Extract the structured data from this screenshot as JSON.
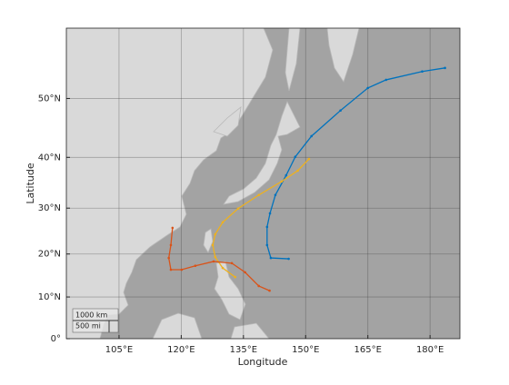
{
  "chart_data": {
    "type": "geoline",
    "projection": "mercator",
    "xlabel": "Longitude",
    "ylabel": "Latitude",
    "xlim": [
      92.3,
      187.2
    ],
    "ylim": [
      0,
      59.7
    ],
    "xticks": [
      {
        "value": 105,
        "label": "105°E"
      },
      {
        "value": 120,
        "label": "120°E"
      },
      {
        "value": 135,
        "label": "135°E"
      },
      {
        "value": 150,
        "label": "150°E"
      },
      {
        "value": 165,
        "label": "165°E"
      },
      {
        "value": 180,
        "label": "180°E"
      }
    ],
    "yticks": [
      {
        "value": 0,
        "label": "0°"
      },
      {
        "value": 10,
        "label": "10°N"
      },
      {
        "value": 20,
        "label": "20°N"
      },
      {
        "value": 30,
        "label": "30°N"
      },
      {
        "value": 40,
        "label": "40°N"
      },
      {
        "value": 50,
        "label": "50°N"
      }
    ],
    "grid": true,
    "scale_bar": [
      "1000 km",
      "500 mi"
    ],
    "series": [
      {
        "color": "#0072BD",
        "x": [
          145.9,
          141.6,
          140.7,
          140.7,
          141.4,
          142.7,
          145.3,
          147.5,
          151.4,
          158.4,
          165.0,
          169.4,
          178.1,
          183.6
        ],
        "values": [
          18.9,
          19.1,
          22.0,
          26.0,
          28.9,
          32.7,
          36.6,
          40.1,
          43.8,
          48.1,
          51.6,
          52.8,
          54.0,
          54.5
        ]
      },
      {
        "color": "#EDB120",
        "x": [
          133.0,
          130.0,
          128.2,
          127.6,
          128.2,
          130.0,
          133.7,
          138.7,
          144.2,
          148.1,
          150.8
        ],
        "values": [
          14.7,
          16.8,
          19.3,
          22.0,
          24.4,
          27.0,
          29.9,
          32.7,
          35.4,
          37.5,
          39.7
        ]
      },
      {
        "color": "#D95319",
        "x": [
          141.3,
          138.7,
          135.4,
          132.2,
          127.8,
          123.4,
          120.1,
          117.5,
          117.0,
          117.5,
          117.9
        ],
        "values": [
          11.5,
          12.6,
          15.8,
          17.9,
          18.3,
          17.3,
          16.4,
          16.4,
          19.1,
          22.0,
          25.8
        ]
      }
    ]
  }
}
